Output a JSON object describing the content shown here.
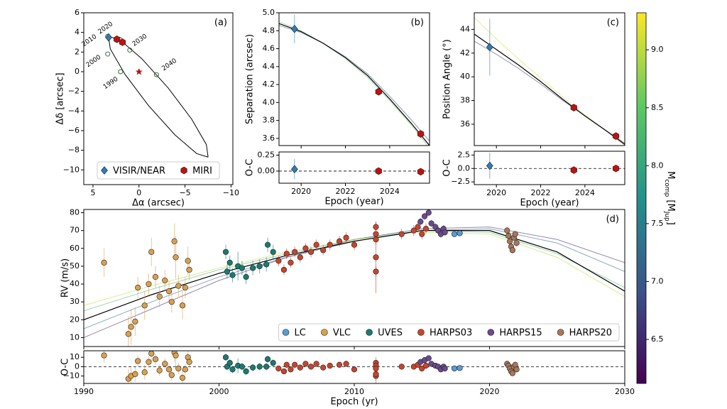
{
  "chart_data": [
    {
      "type": "orbit",
      "panel_label": "(a)",
      "xlabel": "Δα (arcsec)",
      "ylabel": "Δδ [arcsec]",
      "xlim": [
        6,
        -10.2
      ],
      "ylim": [
        -11.5,
        6
      ],
      "xticks": [
        5,
        0,
        {
          "value": -5,
          "label": "−5"
        },
        {
          "value": -10,
          "label": "−10"
        }
      ],
      "yticks": [
        {
          "value": -10,
          "label": "−10"
        },
        {
          "value": -8,
          "label": "−8"
        },
        {
          "value": -6,
          "label": "−6"
        },
        {
          "value": -4,
          "label": "−4"
        },
        {
          "value": -2,
          "label": "−2"
        },
        0,
        2,
        4,
        6
      ],
      "orbit": {
        "color": "#000000",
        "x": [
          -7.51,
          -6.27,
          -3.9,
          -1.05,
          1.52,
          3.12,
          3.31,
          2.07,
          -0.3,
          -3.15,
          -5.72,
          -7.32,
          -7.51
        ],
        "y": [
          -8.7,
          -8.34,
          -6.43,
          -3.47,
          -0.27,
          2.32,
          3.6,
          3.24,
          1.33,
          -1.63,
          -4.83,
          -7.42,
          -8.7
        ]
      },
      "epochs": [
        {
          "label": "1990",
          "x": 2.0,
          "y": 0.0
        },
        {
          "label": "2000",
          "x": 3.4,
          "y": 1.8
        },
        {
          "label": "2010",
          "x": 3.4,
          "y": 3.6
        },
        {
          "label": "2020",
          "x": 2.1,
          "y": 3.3
        },
        {
          "label": "2030",
          "x": 1.0,
          "y": 2.2
        },
        {
          "label": "2040",
          "x": -1.9,
          "y": -0.3
        }
      ],
      "series": [
        {
          "name": "VISIR/NEAR",
          "color": "#2e7cb8",
          "marker": "diamond",
          "x": [
            3.3
          ],
          "values": [
            3.5
          ]
        },
        {
          "name": "MIRI",
          "color": "#c01010",
          "marker": "hexagon",
          "x": [
            2.4,
            1.8
          ],
          "values": [
            3.3,
            3.0
          ]
        }
      ],
      "legend": "lower center"
    },
    {
      "type": "scatter",
      "panel_label": "(b)",
      "ylabel": "Separation (arcsec)",
      "xlabel": "Epoch (year)",
      "residual_ylabel": "O-C",
      "xlim": [
        2019,
        2025.8
      ],
      "ylim": [
        3.52,
        5.0
      ],
      "residual_ylim": [
        -0.19,
        0.3
      ],
      "xticks": [
        2020,
        2022,
        2024
      ],
      "yticks": [
        3.6,
        3.8,
        {
          "value": 4,
          "label": "4.0"
        },
        4.2,
        4.4,
        4.6,
        4.8,
        {
          "value": 5,
          "label": "5.0"
        }
      ],
      "residual_yticks": [
        {
          "value": 0,
          "label": "0.00"
        },
        0.25
      ],
      "fit": {
        "color": "#000000",
        "x": [
          2019,
          2020,
          2021,
          2022,
          2023,
          2024,
          2025,
          2025.8
        ],
        "values": [
          4.88,
          4.79,
          4.66,
          4.5,
          4.3,
          4.04,
          3.76,
          3.52
        ]
      },
      "models": [
        {
          "mass": 6.8,
          "values": [
            4.86,
            4.78,
            4.66,
            4.51,
            4.32,
            4.07,
            3.8,
            3.57
          ]
        },
        {
          "mass": 8.6,
          "values": [
            4.9,
            4.8,
            4.66,
            4.49,
            4.28,
            4.02,
            3.74,
            3.49
          ]
        }
      ],
      "series": [
        {
          "color": "#2e7cb8",
          "marker": "diamond",
          "x": [
            2019.7
          ],
          "values": [
            4.82
          ],
          "errors": [
            0.16
          ],
          "residuals": [
            0.03
          ]
        },
        {
          "color": "#c01010",
          "marker": "hexagon",
          "x": [
            2023.5,
            2025.4
          ],
          "values": [
            4.12,
            3.65
          ],
          "errors": [
            0.01,
            0.01
          ],
          "residuals": [
            0,
            -0.01
          ]
        }
      ]
    },
    {
      "type": "scatter",
      "panel_label": "(c)",
      "ylabel": "Position Angle (°)",
      "xlabel": "Epoch (year)",
      "residual_ylabel": "O-C",
      "xlim": [
        2019,
        2025.8
      ],
      "ylim": [
        34.2,
        45.4
      ],
      "residual_ylim": [
        -3.0,
        3.2
      ],
      "xticks": [
        2020,
        2022,
        2024
      ],
      "yticks": [
        36,
        38,
        40,
        42,
        44
      ],
      "residual_yticks": [
        {
          "value": -2.5,
          "label": "−2.5"
        },
        {
          "value": 0,
          "label": "0.0"
        },
        2.5
      ],
      "fit": {
        "color": "#000000",
        "x": [
          2019,
          2020,
          2021,
          2022,
          2023,
          2024,
          2025,
          2025.8
        ],
        "values": [
          43.6,
          42.3,
          41.0,
          39.6,
          38.1,
          36.7,
          35.4,
          34.3
        ]
      },
      "models": [
        {
          "mass": 6.8,
          "values": [
            43.0,
            41.9,
            40.7,
            39.4,
            38.0,
            36.7,
            35.4,
            34.4
          ]
        },
        {
          "mass": 9.1,
          "values": [
            45.0,
            43.2,
            41.5,
            39.9,
            38.3,
            36.8,
            35.4,
            34.2
          ]
        }
      ],
      "series": [
        {
          "color": "#2e7cb8",
          "marker": "diamond",
          "x": [
            2019.7
          ],
          "values": [
            42.5
          ],
          "errors": [
            2.4
          ],
          "residuals": [
            0.5
          ]
        },
        {
          "color": "#c01010",
          "marker": "hexagon",
          "x": [
            2023.5,
            2025.4
          ],
          "values": [
            37.4,
            35.0
          ],
          "errors": [
            0.3,
            0.2
          ],
          "residuals": [
            -0.3,
            0
          ]
        }
      ]
    },
    {
      "type": "scatter",
      "panel_label": "(d)",
      "ylabel": "RV (m/s)",
      "xlabel": "Epoch (yr)",
      "residual_ylabel": "O-C",
      "xlim": [
        1990,
        2030
      ],
      "ylim": [
        5,
        81.8
      ],
      "residual_ylim": [
        -18,
        17
      ],
      "xticks": [
        1990,
        2000,
        2010,
        2020,
        2030
      ],
      "yticks": [
        10,
        20,
        30,
        40,
        50,
        60,
        70,
        80
      ],
      "residual_yticks": [
        {
          "value": -10,
          "label": "−10"
        },
        0,
        10
      ],
      "fit": {
        "color": "#000000",
        "x": [
          1990,
          1995,
          2000,
          2005,
          2010,
          2015,
          2020,
          2025,
          2030
        ],
        "values": [
          20,
          34,
          46,
          56,
          64,
          70,
          70,
          58,
          36
        ]
      },
      "models": [
        {
          "mass": 6.5,
          "values": [
            10,
            26,
            42,
            55,
            65,
            71,
            72,
            65,
            52
          ]
        },
        {
          "mass": 7.2,
          "values": [
            15,
            30,
            44,
            55,
            64,
            70,
            71,
            63,
            47
          ]
        },
        {
          "mass": 8.2,
          "values": [
            25,
            37,
            48,
            57,
            65,
            70,
            69,
            57,
            38
          ]
        },
        {
          "mass": 9.0,
          "values": [
            28,
            39,
            49,
            58,
            65,
            69,
            68,
            55,
            33
          ]
        }
      ],
      "series": [
        {
          "name": "LC",
          "color": "#5b9bd5",
          "marker": "circle",
          "x": [
            2017.4,
            2017.8
          ],
          "values": [
            68,
            68.5
          ],
          "errors": [
            1.5,
            1.5
          ],
          "residuals": [
            -2,
            -1.5
          ]
        },
        {
          "name": "VLC",
          "color": "#d9a04e",
          "marker": "circle",
          "x": [
            1991.5,
            1993.3,
            1993.5,
            1993.8,
            1994.0,
            1994.5,
            1994.8,
            1995.0,
            1995.3,
            1995.6,
            1996.0,
            1996.3,
            1996.5,
            1996.7,
            1996.8,
            1997.0,
            1997.3,
            1997.5,
            1997.7,
            1997.8
          ],
          "values": [
            52,
            12,
            16,
            19,
            38,
            28,
            40,
            58,
            44,
            33,
            42,
            36,
            30,
            64,
            55,
            39,
            28,
            38,
            53,
            48
          ],
          "errors": [
            8,
            10,
            10,
            8,
            6,
            8,
            6,
            8,
            6,
            6,
            6,
            6,
            6,
            10,
            12,
            6,
            8,
            6,
            8,
            6
          ],
          "residuals": [
            12,
            -13,
            -10,
            -8,
            6,
            -6,
            5,
            14,
            8,
            -4,
            3,
            -3,
            -9,
            15,
            12,
            -2,
            -12,
            -3,
            10,
            5
          ]
        },
        {
          "name": "UVES",
          "color": "#1a7a72",
          "marker": "circle",
          "x": [
            2000.5,
            2000.6,
            2000.8,
            2001.0,
            2001.4,
            2001.7,
            2002.0,
            2002.5,
            2003.0,
            2003.5,
            2003.6,
            2004.0
          ],
          "values": [
            58,
            47,
            52,
            45,
            50,
            49,
            44,
            49,
            50,
            51,
            62,
            58
          ],
          "errors": [
            4,
            4,
            4,
            4,
            8,
            4,
            4,
            4,
            4,
            4,
            4,
            4
          ],
          "residuals": [
            10,
            0,
            4,
            -3,
            1,
            0,
            -5,
            -1,
            0,
            0,
            8,
            4
          ]
        },
        {
          "name": "HARPS03",
          "color": "#c8442c",
          "marker": "circle",
          "x": [
            2004.4,
            2004.8,
            2005.0,
            2005.3,
            2005.6,
            2006.0,
            2006.4,
            2006.8,
            2007.2,
            2007.7,
            2008.2,
            2008.9,
            2009.4,
            2010.0,
            2011.6,
            2011.6,
            2011.6,
            2011.6,
            2011.6,
            2013.5,
            2014.4,
            2014.7,
            2015.0,
            2015.3
          ],
          "values": [
            53,
            48,
            57,
            52,
            58,
            55,
            60,
            58,
            62,
            59,
            62,
            64,
            66,
            62,
            72,
            68,
            65,
            55,
            47,
            68,
            70,
            72,
            68,
            71
          ],
          "errors": [
            3,
            3,
            3,
            3,
            3,
            3,
            3,
            3,
            3,
            3,
            3,
            3,
            3,
            3,
            3,
            3,
            3,
            20,
            3,
            3,
            3,
            3,
            3,
            3
          ],
          "residuals": [
            -2,
            -5,
            2,
            -3,
            2,
            -1,
            3,
            0,
            3,
            -1,
            1,
            2,
            3,
            -3,
            4,
            1,
            -2,
            -10,
            -8,
            0,
            0,
            2,
            -2,
            1
          ]
        },
        {
          "name": "HARPS15",
          "color": "#6a4b8c",
          "marker": "circle",
          "x": [
            2014.9,
            2015.2,
            2015.5,
            2015.7,
            2016.0,
            2016.2,
            2016.4,
            2016.6,
            2016.7
          ],
          "values": [
            75,
            78,
            80,
            74,
            72,
            70,
            68,
            71,
            69
          ],
          "errors": [
            2,
            2,
            2,
            2,
            2,
            2,
            2,
            2,
            2
          ],
          "residuals": [
            5,
            7,
            9,
            3,
            1,
            0,
            -3,
            0,
            -2
          ]
        },
        {
          "name": "HARPS20",
          "color": "#a8775a",
          "marker": "circle",
          "x": [
            2021.3,
            2021.4,
            2021.5,
            2021.6,
            2021.7,
            2021.8,
            2021.9,
            2022.0
          ],
          "values": [
            70,
            67,
            64,
            61,
            59,
            66,
            68,
            63
          ],
          "errors": [
            2,
            2,
            2,
            2,
            2,
            2,
            2,
            2
          ],
          "residuals": [
            3,
            1,
            -2,
            -5,
            -7,
            0,
            2,
            -3
          ]
        }
      ],
      "legend": "lower right"
    },
    {
      "type": "colorbar",
      "label": [
        "M",
        "comp",
        " [M",
        "Jup",
        "]"
      ],
      "lim": [
        6.12,
        9.32
      ],
      "ticks": [
        6.5,
        {
          "value": 7,
          "label": "7.0"
        },
        7.5,
        {
          "value": 8,
          "label": "8.0"
        },
        8.5,
        {
          "value": 9,
          "label": "9.0"
        }
      ],
      "colors": [
        "#440154",
        "#3b528b",
        "#21918c",
        "#5ec962",
        "#fde725"
      ]
    }
  ]
}
